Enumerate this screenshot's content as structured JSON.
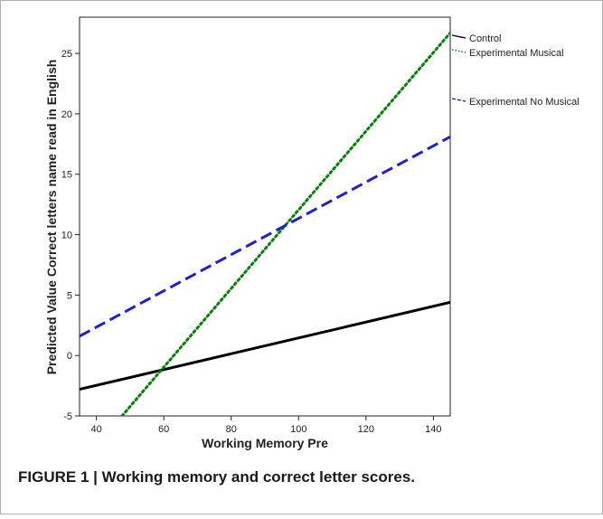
{
  "caption": "FIGURE 1 | Working memory and correct letter scores.",
  "chart_data": {
    "type": "line",
    "title": "",
    "xlabel": "Working Memory Pre",
    "ylabel": "Predicted Value Correct letters name read in English",
    "xlim": [
      35,
      145
    ],
    "ylim": [
      -5,
      28
    ],
    "xticks": [
      "40",
      "60",
      "80",
      "100",
      "120",
      "140"
    ],
    "yticks": [
      "-5",
      "0",
      "5",
      "10",
      "15",
      "20",
      "25"
    ],
    "grid": false,
    "legend_position": "right",
    "series": [
      {
        "name": "Control",
        "color": "#000000",
        "style": "solid",
        "x": [
          35,
          145
        ],
        "y": [
          -2.8,
          4.4
        ]
      },
      {
        "name": "Experimental Musical",
        "color": "#008000",
        "style": "dotted",
        "x": [
          47.6,
          145
        ],
        "y": [
          -5,
          26.7
        ]
      },
      {
        "name": "Experimental No Musical",
        "color": "#1e1ed2",
        "style": "dashed",
        "x": [
          35,
          145
        ],
        "y": [
          1.6,
          18.1
        ]
      }
    ]
  }
}
